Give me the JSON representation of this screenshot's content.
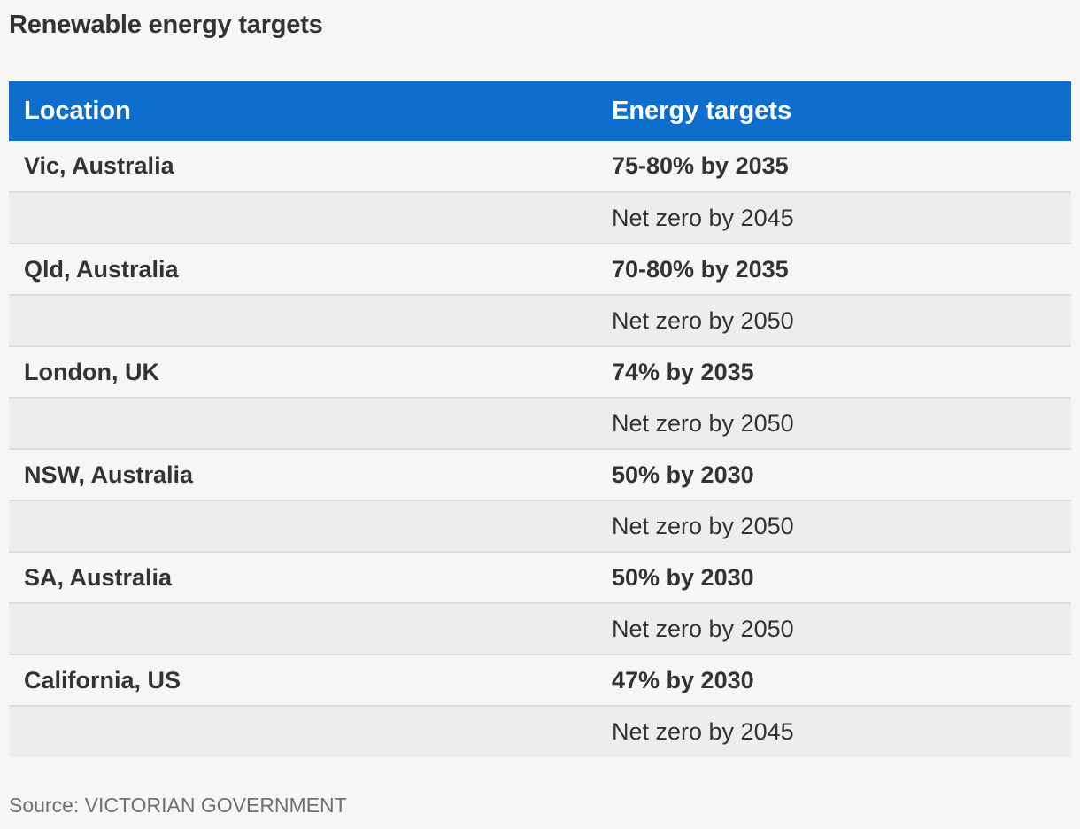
{
  "title": "Renewable energy targets",
  "source": "Source: VICTORIAN GOVERNMENT",
  "colors": {
    "header_bg": "#0f6ecb",
    "header_text": "#ffffff",
    "row_odd": "#f6f6f6",
    "row_even": "#ededed"
  },
  "chart_data": {
    "type": "table",
    "title": "Renewable energy targets",
    "columns": [
      "Location",
      "Energy targets"
    ],
    "rows": [
      [
        "Vic, Australia",
        "75-80% by 2035"
      ],
      [
        "",
        "Net zero by 2045"
      ],
      [
        "Qld, Australia",
        "70-80% by 2035"
      ],
      [
        "",
        "Net zero by 2050"
      ],
      [
        "London, UK",
        "74% by 2035"
      ],
      [
        "",
        "Net zero by 2050"
      ],
      [
        "NSW, Australia",
        "50% by 2030"
      ],
      [
        "",
        "Net zero by 2050"
      ],
      [
        "SA, Australia",
        "50% by 2030"
      ],
      [
        "",
        "Net zero by 2050"
      ],
      [
        "California, US",
        "47% by 2030"
      ],
      [
        "",
        "Net zero by 2045"
      ]
    ],
    "source": "Source: VICTORIAN GOVERNMENT"
  }
}
